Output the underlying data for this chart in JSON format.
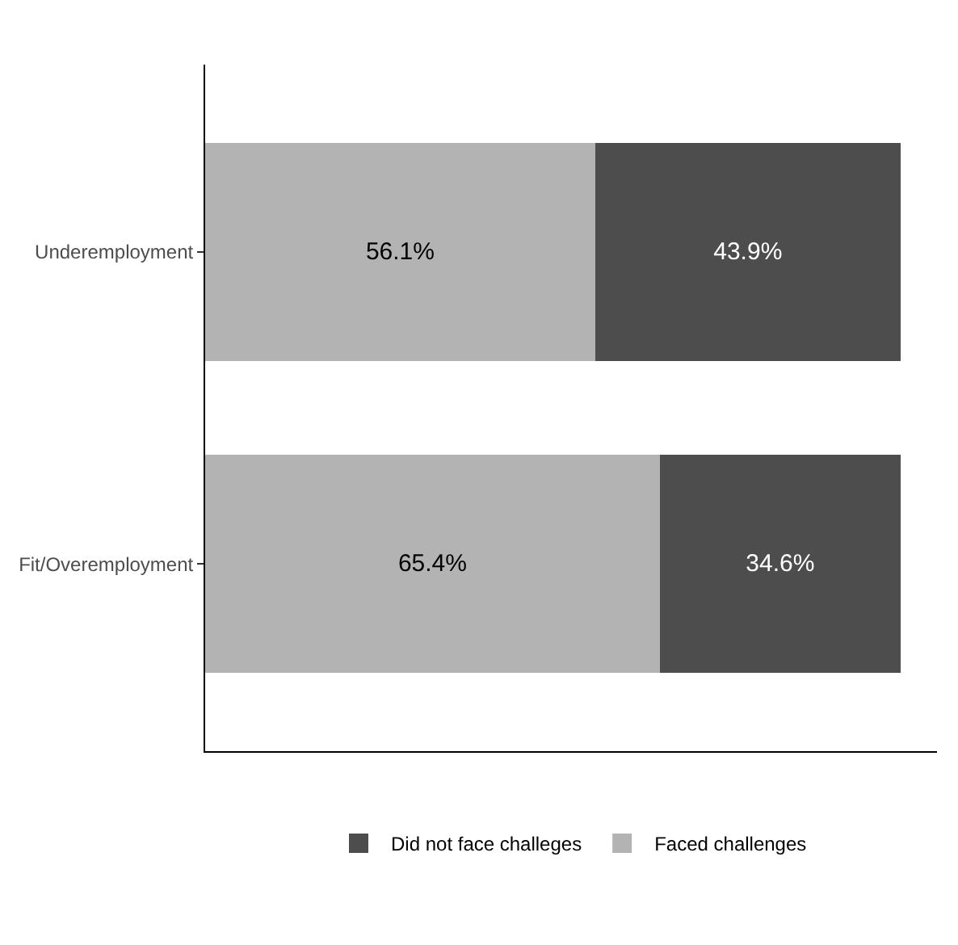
{
  "chart_data": {
    "type": "bar",
    "orientation": "horizontal",
    "stacked": true,
    "categories": [
      "Underemployment",
      "Fit/Overemployment"
    ],
    "series": [
      {
        "name": "Faced challenges",
        "color": "#b3b3b3",
        "values": [
          56.1,
          65.4
        ],
        "value_labels": [
          "56.1%",
          "65.4%"
        ]
      },
      {
        "name": "Did not face challeges",
        "color": "#4d4d4d",
        "values": [
          43.9,
          34.6
        ],
        "value_labels": [
          "43.9%",
          "34.6%"
        ]
      }
    ],
    "tick_labels": "y",
    "legend": "bottom",
    "grid": false
  }
}
